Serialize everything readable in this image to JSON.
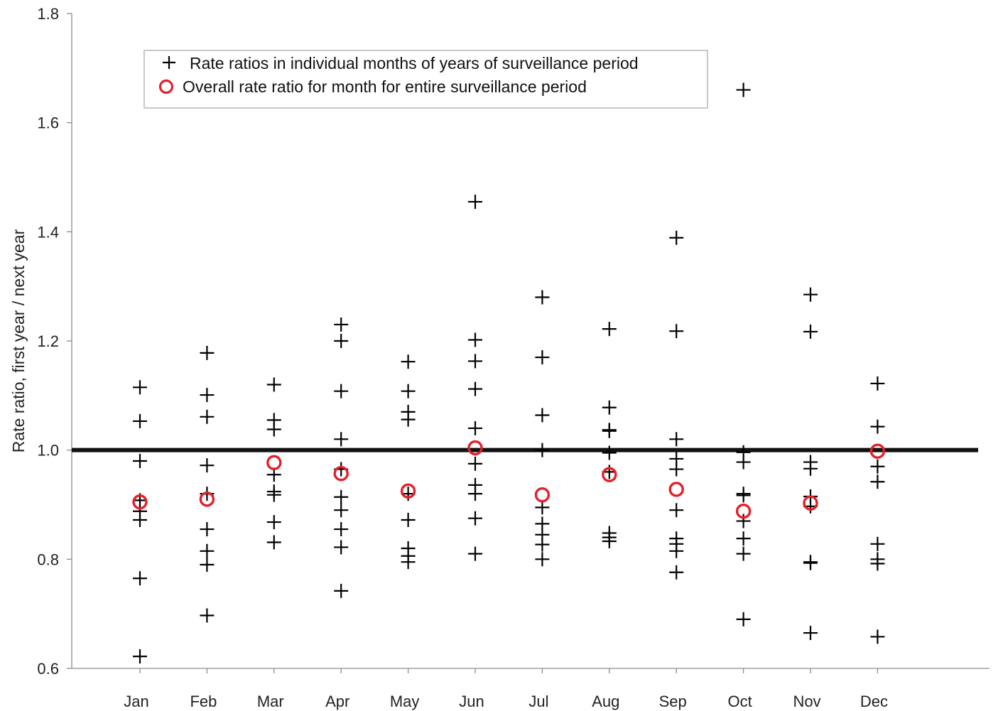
{
  "chart_data": {
    "type": "scatter",
    "xlabel": "",
    "ylabel": "Rate ratio, first year / next year",
    "ylim": [
      0.6,
      1.8
    ],
    "yticks": [
      "0.6",
      "0.8",
      "1.0",
      "1.2",
      "1.4",
      "1.6",
      "1.8"
    ],
    "categories": [
      "Jan",
      "Feb",
      "Mar",
      "Apr",
      "May",
      "Jun",
      "Jul",
      "Aug",
      "Sep",
      "Oct",
      "Nov",
      "Dec"
    ],
    "reference_line": 1.0,
    "grid": false,
    "legend_position": "top-left",
    "series": [
      {
        "name": "Rate ratios in individual months of years of surveillance period",
        "marker": "plus",
        "color": "#000000",
        "values": [
          [
            1.115,
            1.053,
            0.98,
            0.908,
            0.888,
            0.872,
            0.765,
            0.622
          ],
          [
            1.178,
            1.101,
            1.061,
            0.972,
            0.92,
            0.855,
            0.815,
            0.79,
            0.697
          ],
          [
            1.12,
            1.055,
            1.038,
            0.955,
            0.924,
            0.918,
            0.868,
            0.831
          ],
          [
            1.23,
            1.2,
            1.108,
            1.02,
            0.965,
            0.914,
            0.89,
            0.855,
            0.822,
            0.742
          ],
          [
            1.162,
            1.108,
            1.07,
            1.056,
            0.92,
            0.872,
            0.82,
            0.806,
            0.795
          ],
          [
            1.455,
            1.202,
            1.163,
            1.112,
            1.04,
            0.975,
            0.936,
            0.92,
            0.875,
            0.81
          ],
          [
            1.28,
            1.17,
            1.064,
            1.0,
            0.895,
            0.865,
            0.845,
            0.827,
            0.8
          ],
          [
            1.222,
            1.078,
            1.037,
            1.035,
            0.995,
            0.96,
            0.848,
            0.84,
            0.833
          ],
          [
            1.389,
            1.218,
            1.02,
            0.984,
            0.965,
            0.89,
            0.838,
            0.828,
            0.815,
            0.776
          ],
          [
            1.66,
            0.996,
            0.978,
            0.92,
            0.917,
            0.87,
            0.838,
            0.81,
            0.69
          ],
          [
            1.285,
            1.217,
            0.978,
            0.966,
            0.915,
            0.897,
            0.795,
            0.793,
            0.665
          ],
          [
            1.122,
            1.043,
            0.97,
            0.942,
            0.828,
            0.8,
            0.792,
            0.658
          ]
        ]
      },
      {
        "name": "Overall rate ratio for month for entire surveillance period",
        "marker": "circle",
        "color": "#e3202a",
        "values": [
          0.905,
          0.91,
          0.977,
          0.957,
          0.925,
          1.004,
          0.918,
          0.955,
          0.928,
          0.888,
          0.903,
          0.998
        ]
      }
    ]
  }
}
